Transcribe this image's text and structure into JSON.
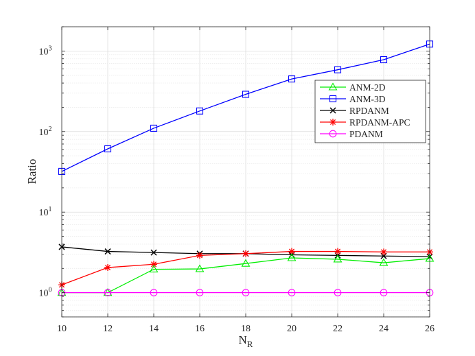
{
  "chart_data": {
    "type": "line",
    "title": "",
    "xlabel": "N",
    "xlabel_sub": "R",
    "ylabel": "Ratio",
    "x": [
      10,
      12,
      14,
      16,
      18,
      20,
      22,
      24,
      26
    ],
    "xlim": [
      10,
      26
    ],
    "ylim": [
      0.5,
      2000
    ],
    "yscale": "log",
    "grid": true,
    "legend_position": "upper-right",
    "xticks": [
      "10",
      "12",
      "14",
      "16",
      "18",
      "20",
      "22",
      "24",
      "26"
    ],
    "yticks": [
      {
        "value": 1,
        "base": "10",
        "exp": "0"
      },
      {
        "value": 10,
        "base": "10",
        "exp": "1"
      },
      {
        "value": 100,
        "base": "10",
        "exp": "2"
      },
      {
        "value": 1000,
        "base": "10",
        "exp": "3"
      }
    ],
    "series": [
      {
        "name": "ANM-2D",
        "color": "#00ee00",
        "marker": "triangle",
        "values": [
          1.0,
          1.0,
          1.95,
          1.97,
          2.3,
          2.7,
          2.6,
          2.35,
          2.65
        ]
      },
      {
        "name": "ANM-3D",
        "color": "#0000ff",
        "marker": "square",
        "values": [
          32,
          61,
          110,
          180,
          290,
          450,
          585,
          780,
          1220
        ]
      },
      {
        "name": "RPDANM",
        "color": "#000000",
        "marker": "x",
        "values": [
          3.7,
          3.25,
          3.15,
          3.05,
          3.05,
          2.95,
          2.9,
          2.85,
          2.8
        ]
      },
      {
        "name": "RPDANM-APC",
        "color": "#ff0000",
        "marker": "asterisk",
        "values": [
          1.25,
          2.05,
          2.25,
          2.9,
          3.05,
          3.25,
          3.25,
          3.2,
          3.2
        ]
      },
      {
        "name": "PDANM",
        "color": "#ff00ff",
        "marker": "circle",
        "values": [
          1.0,
          1.0,
          1.0,
          1.0,
          1.0,
          1.0,
          1.0,
          1.0,
          1.0
        ]
      }
    ]
  }
}
